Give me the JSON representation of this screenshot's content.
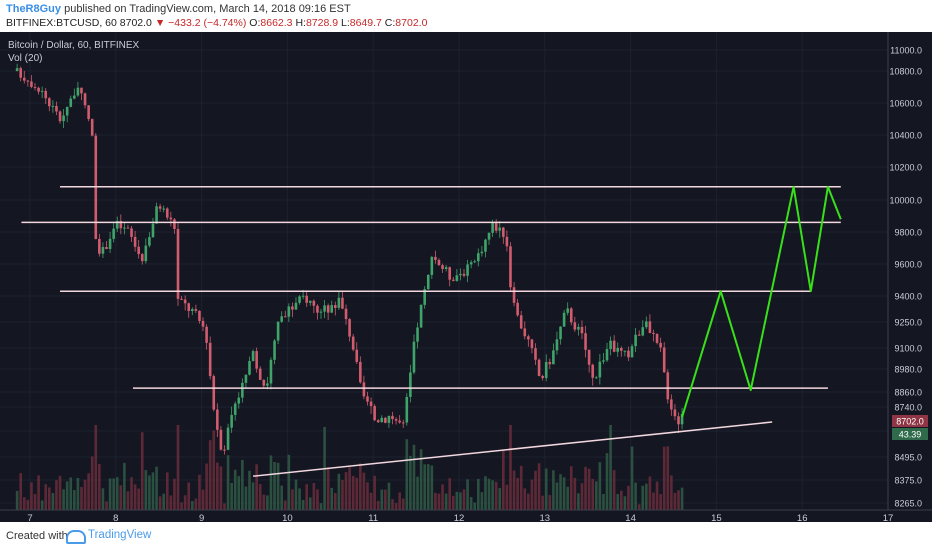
{
  "header": {
    "author": "TheR8Guy",
    "published": "published on TradingView.com, March 14, 2018 09:16 EST",
    "symbol": "BITFINEX:BTCUSD, 60",
    "last": "8702.0",
    "change": "▼ −433.2 (−4.74%)",
    "o_label": "O:",
    "o_val": "8662.3",
    "h_label": "H:",
    "h_val": "8728.9",
    "l_label": "L:",
    "l_val": "8649.7",
    "c_label": "C:",
    "c_val": "8702.0"
  },
  "legend": {
    "title": "Bitcoin / Dollar, 60, BITFINEX",
    "indicator": "Vol (20)"
  },
  "price_tags": {
    "last": "8702.0",
    "vol": "43.39"
  },
  "footer": {
    "created": "Created with",
    "brand": "TradingView"
  },
  "colors": {
    "background": "#141722",
    "up": "#3fa36a",
    "down": "#d05c6e",
    "level_line": "#f3d7df",
    "projection": "#39e01a",
    "grid": "#1d2230",
    "axis_text": "#c9ccd6"
  },
  "chart_data": {
    "type": "candlestick",
    "title": "Bitcoin / Dollar, 60, BITFINEX",
    "x_ticks": [
      "7",
      "8",
      "9",
      "10",
      "11",
      "12",
      "13",
      "14",
      "15",
      "16",
      "17"
    ],
    "y_ticks": [
      8265.0,
      8375.0,
      8495.0,
      8620.0,
      8740.0,
      8860.0,
      8980.0,
      9100.0,
      9250.0,
      9400.0,
      9600.0,
      9800.0,
      10000.0,
      10200.0,
      10400.0,
      10600.0,
      10800.0,
      11000.0
    ],
    "grid": true,
    "anchors": [
      {
        "day": 6.85,
        "price": 10800
      },
      {
        "day": 7.1,
        "price": 10700
      },
      {
        "day": 7.35,
        "price": 10500
      },
      {
        "day": 7.55,
        "price": 10700
      },
      {
        "day": 7.72,
        "price": 10450
      },
      {
        "day": 7.78,
        "price": 9600
      },
      {
        "day": 8.0,
        "price": 9850
      },
      {
        "day": 8.15,
        "price": 9800
      },
      {
        "day": 8.3,
        "price": 9630
      },
      {
        "day": 8.5,
        "price": 9980
      },
      {
        "day": 8.7,
        "price": 9820
      },
      {
        "day": 8.72,
        "price": 9380
      },
      {
        "day": 8.9,
        "price": 9310
      },
      {
        "day": 9.05,
        "price": 9200
      },
      {
        "day": 9.15,
        "price": 8700
      },
      {
        "day": 9.25,
        "price": 8520
      },
      {
        "day": 9.4,
        "price": 8800
      },
      {
        "day": 9.6,
        "price": 9050
      },
      {
        "day": 9.75,
        "price": 8880
      },
      {
        "day": 9.9,
        "price": 9250
      },
      {
        "day": 10.2,
        "price": 9400
      },
      {
        "day": 10.4,
        "price": 9300
      },
      {
        "day": 10.6,
        "price": 9380
      },
      {
        "day": 10.75,
        "price": 9150
      },
      {
        "day": 10.85,
        "price": 8880
      },
      {
        "day": 11.0,
        "price": 8680
      },
      {
        "day": 11.2,
        "price": 8700
      },
      {
        "day": 11.35,
        "price": 8640
      },
      {
        "day": 11.5,
        "price": 9200
      },
      {
        "day": 11.7,
        "price": 9650
      },
      {
        "day": 11.9,
        "price": 9520
      },
      {
        "day": 12.15,
        "price": 9580
      },
      {
        "day": 12.4,
        "price": 9850
      },
      {
        "day": 12.55,
        "price": 9780
      },
      {
        "day": 12.62,
        "price": 9350
      },
      {
        "day": 12.8,
        "price": 9150
      },
      {
        "day": 12.95,
        "price": 8920
      },
      {
        "day": 13.1,
        "price": 9080
      },
      {
        "day": 13.25,
        "price": 9320
      },
      {
        "day": 13.45,
        "price": 9150
      },
      {
        "day": 13.55,
        "price": 8920
      },
      {
        "day": 13.75,
        "price": 9120
      },
      {
        "day": 13.95,
        "price": 9050
      },
      {
        "day": 14.15,
        "price": 9250
      },
      {
        "day": 14.35,
        "price": 9080
      },
      {
        "day": 14.45,
        "price": 8780
      },
      {
        "day": 14.55,
        "price": 8670
      },
      {
        "day": 14.6,
        "price": 8702
      }
    ],
    "levels": [
      {
        "price": 10080,
        "from_day": 7.35,
        "to_day": 16.45
      },
      {
        "price": 9860,
        "from_day": 6.9,
        "to_day": 16.45
      },
      {
        "price": 9430,
        "from_day": 7.35,
        "to_day": 16.1
      },
      {
        "price": 8880,
        "from_day": 8.2,
        "to_day": 16.3
      }
    ],
    "trendline": {
      "from_day": 9.6,
      "from_price": 8395,
      "to_day": 15.65,
      "to_price": 8665
    },
    "projection": [
      {
        "day": 14.6,
        "price": 8690
      },
      {
        "day": 15.05,
        "price": 9430
      },
      {
        "day": 15.4,
        "price": 8870
      },
      {
        "day": 15.9,
        "price": 10080
      },
      {
        "day": 16.1,
        "price": 9430
      },
      {
        "day": 16.3,
        "price": 10080
      },
      {
        "day": 16.45,
        "price": 9880
      }
    ],
    "volume_scale_max": 1
  }
}
